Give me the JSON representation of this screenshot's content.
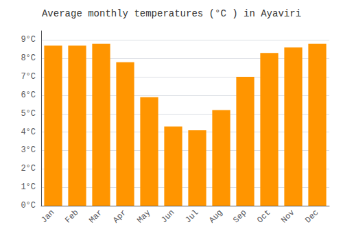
{
  "chart_data": {
    "type": "bar",
    "title": "Average monthly temperatures (°C ) in Ayaviri",
    "categories": [
      "Jan",
      "Feb",
      "Mar",
      "Apr",
      "May",
      "Jun",
      "Jul",
      "Aug",
      "Sep",
      "Oct",
      "Nov",
      "Dec"
    ],
    "values": [
      8.7,
      8.7,
      8.8,
      7.8,
      5.9,
      4.3,
      4.1,
      5.2,
      7.0,
      8.3,
      8.6,
      8.8
    ],
    "color": "#FF9500",
    "ylim": [
      0,
      9.5
    ],
    "yticks": [
      {
        "value": 0,
        "label": "0°C"
      },
      {
        "value": 1,
        "label": "1°C"
      },
      {
        "value": 2,
        "label": "2°C"
      },
      {
        "value": 3,
        "label": "3°C"
      },
      {
        "value": 4,
        "label": "4°C"
      },
      {
        "value": 5,
        "label": "5°C"
      },
      {
        "value": 6,
        "label": "6°C"
      },
      {
        "value": 7,
        "label": "7°C"
      },
      {
        "value": 8,
        "label": "8°C"
      },
      {
        "value": 9,
        "label": "9°C"
      }
    ],
    "grid": true
  }
}
